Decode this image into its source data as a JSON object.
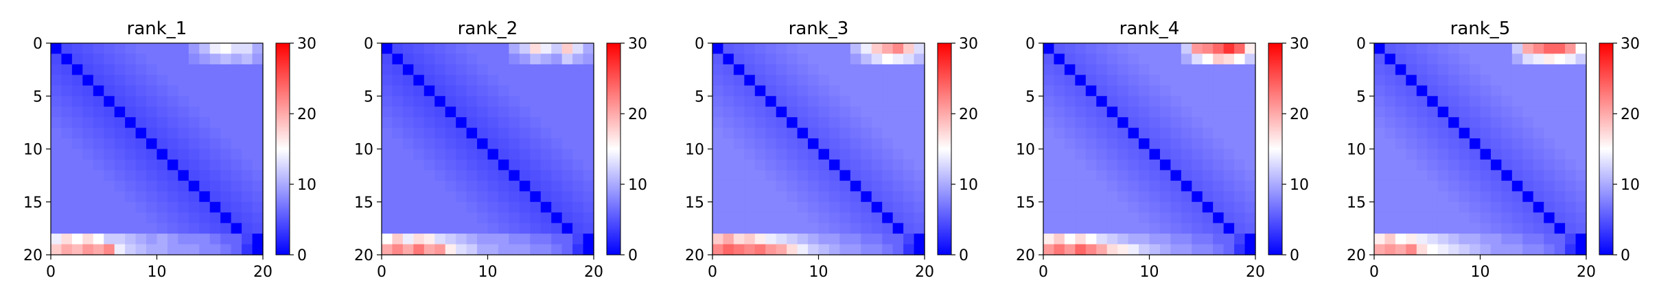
{
  "figure": {
    "colormap": [
      "#0000ff",
      "#ffffff",
      "#ff0000"
    ],
    "cell_border_color": "#000000"
  },
  "chart_data": [
    {
      "type": "heatmap",
      "title": "rank_1",
      "xlim": [
        0,
        20
      ],
      "ylim": [
        20,
        0
      ],
      "xticks": [
        0,
        10,
        20
      ],
      "yticks": [
        0,
        5,
        10,
        15,
        20
      ],
      "colorbar": {
        "range": [
          0,
          30
        ],
        "ticks": [
          0,
          10,
          20,
          30
        ]
      },
      "rows": 20,
      "cols": 20,
      "base_value": 4,
      "diagonal_value": 0,
      "top_right_block": {
        "rows": [
          0,
          1
        ],
        "cols": [
          13,
          19
        ],
        "values": [
          [
            9,
            11,
            14,
            15,
            13,
            13,
            10
          ],
          [
            8,
            9,
            10,
            11,
            10,
            11,
            9
          ]
        ]
      },
      "bottom_rows": {
        "rows": [
          18,
          19
        ],
        "values": [
          [
            14,
            17,
            15,
            17,
            15,
            12,
            12,
            11,
            10,
            9,
            10,
            9,
            8,
            8,
            8,
            7,
            6,
            6,
            4,
            0
          ],
          [
            18,
            20,
            19,
            21,
            20,
            22,
            14,
            12,
            11,
            10,
            10,
            9,
            9,
            9,
            8,
            8,
            7,
            6,
            3,
            0
          ]
        ]
      }
    },
    {
      "type": "heatmap",
      "title": "rank_2",
      "xlim": [
        0,
        20
      ],
      "ylim": [
        20,
        0
      ],
      "xticks": [
        0,
        10,
        20
      ],
      "yticks": [
        0,
        5,
        10,
        15,
        20
      ],
      "colorbar": {
        "range": [
          0,
          30
        ],
        "ticks": [
          0,
          10,
          20,
          30
        ]
      },
      "rows": 20,
      "cols": 20,
      "base_value": 4,
      "diagonal_value": 0,
      "top_right_block": {
        "rows": [
          0,
          1
        ],
        "cols": [
          12,
          19
        ],
        "values": [
          [
            10,
            12,
            17,
            14,
            12,
            18,
            13,
            10
          ],
          [
            8,
            9,
            11,
            10,
            9,
            12,
            10,
            9
          ]
        ]
      },
      "bottom_rows": {
        "rows": [
          18,
          19
        ],
        "values": [
          [
            15,
            18,
            14,
            17,
            16,
            13,
            12,
            11,
            10,
            9,
            9,
            9,
            8,
            8,
            7,
            7,
            6,
            6,
            4,
            0
          ],
          [
            20,
            22,
            20,
            23,
            20,
            21,
            16,
            13,
            12,
            10,
            10,
            9,
            9,
            9,
            8,
            8,
            7,
            6,
            3,
            0
          ]
        ]
      }
    },
    {
      "type": "heatmap",
      "title": "rank_3",
      "xlim": [
        0,
        20
      ],
      "ylim": [
        20,
        0
      ],
      "xticks": [
        0,
        10,
        20
      ],
      "yticks": [
        0,
        5,
        10,
        15,
        20
      ],
      "colorbar": {
        "range": [
          0,
          30
        ],
        "ticks": [
          0,
          10,
          20,
          30
        ]
      },
      "rows": 20,
      "cols": 20,
      "base_value": 5,
      "diagonal_value": 0,
      "top_right_block": {
        "rows": [
          0,
          1
        ],
        "cols": [
          13,
          19
        ],
        "values": [
          [
            11,
            14,
            18,
            20,
            22,
            18,
            13
          ],
          [
            9,
            11,
            13,
            15,
            14,
            13,
            11
          ]
        ]
      },
      "bottom_rows": {
        "rows": [
          18,
          19
        ],
        "values": [
          [
            18,
            20,
            17,
            18,
            16,
            14,
            13,
            12,
            11,
            10,
            9,
            9,
            8,
            8,
            7,
            7,
            6,
            6,
            4,
            0
          ],
          [
            22,
            24,
            23,
            22,
            23,
            21,
            20,
            17,
            14,
            12,
            11,
            10,
            9,
            9,
            8,
            8,
            7,
            6,
            3,
            0
          ]
        ]
      }
    },
    {
      "type": "heatmap",
      "title": "rank_4",
      "xlim": [
        0,
        20
      ],
      "ylim": [
        20,
        0
      ],
      "xticks": [
        0,
        10,
        20
      ],
      "yticks": [
        0,
        5,
        10,
        15,
        20
      ],
      "colorbar": {
        "range": [
          0,
          30
        ],
        "ticks": [
          0,
          10,
          20,
          30
        ]
      },
      "rows": 20,
      "cols": 20,
      "base_value": 5,
      "diagonal_value": 0,
      "top_right_block": {
        "rows": [
          0,
          1
        ],
        "cols": [
          13,
          19
        ],
        "values": [
          [
            12,
            21,
            22,
            24,
            27,
            24,
            16
          ],
          [
            10,
            13,
            15,
            18,
            17,
            15,
            12
          ]
        ]
      },
      "bottom_rows": {
        "rows": [
          18,
          19
        ],
        "values": [
          [
            16,
            18,
            15,
            17,
            15,
            13,
            12,
            11,
            10,
            10,
            9,
            9,
            8,
            8,
            7,
            7,
            6,
            6,
            4,
            0
          ],
          [
            21,
            23,
            21,
            24,
            22,
            20,
            17,
            16,
            14,
            12,
            11,
            10,
            9,
            9,
            8,
            8,
            7,
            6,
            3,
            0
          ]
        ]
      }
    },
    {
      "type": "heatmap",
      "title": "rank_5",
      "xlim": [
        0,
        20
      ],
      "ylim": [
        20,
        0
      ],
      "xticks": [
        0,
        10,
        20
      ],
      "yticks": [
        0,
        5,
        10,
        15,
        20
      ],
      "colorbar": {
        "range": [
          0,
          30
        ],
        "ticks": [
          0,
          10,
          20,
          30
        ]
      },
      "rows": 20,
      "cols": 20,
      "base_value": 5,
      "diagonal_value": 0,
      "top_right_block": {
        "rows": [
          0,
          1
        ],
        "cols": [
          13,
          19
        ],
        "values": [
          [
            12,
            20,
            22,
            24,
            24,
            21,
            15
          ],
          [
            10,
            13,
            14,
            16,
            15,
            14,
            12
          ]
        ]
      },
      "bottom_rows": {
        "rows": [
          18,
          19
        ],
        "values": [
          [
            16,
            18,
            15,
            16,
            14,
            13,
            12,
            11,
            10,
            10,
            9,
            9,
            8,
            8,
            7,
            7,
            6,
            6,
            4,
            0
          ],
          [
            20,
            21,
            20,
            22,
            17,
            15,
            14,
            13,
            12,
            11,
            10,
            9,
            9,
            9,
            8,
            8,
            7,
            6,
            3,
            0
          ]
        ]
      }
    }
  ]
}
